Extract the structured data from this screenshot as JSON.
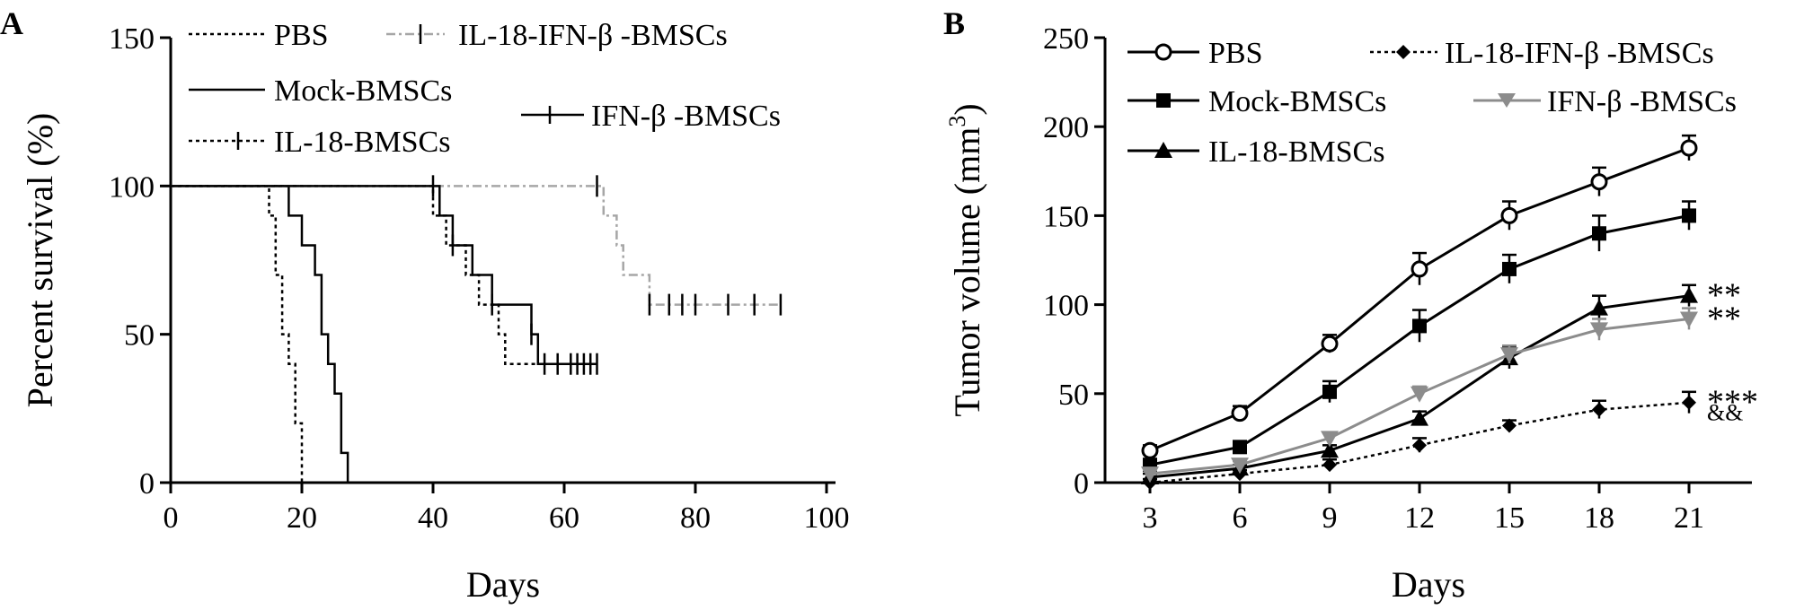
{
  "chart_data": [
    {
      "panel": "A",
      "type": "line",
      "step": true,
      "xlabel": "Days",
      "ylabel": "Percent survival (%)",
      "xlim": [
        0,
        100
      ],
      "ylim": [
        0,
        150
      ],
      "xticks": [
        0,
        20,
        40,
        60,
        80,
        100
      ],
      "yticks": [
        0,
        50,
        100,
        150
      ],
      "grid": false,
      "legend_position": "top",
      "series": [
        {
          "name": "PBS",
          "color": "#000000",
          "style": "dotted",
          "x": [
            0,
            15,
            16,
            17,
            18,
            19,
            20
          ],
          "y": [
            100,
            90,
            70,
            50,
            40,
            20,
            0
          ],
          "censored": []
        },
        {
          "name": "Mock-BMSCs",
          "color": "#000000",
          "style": "solid",
          "x": [
            0,
            17,
            18,
            20,
            22,
            23,
            24,
            25,
            26,
            27
          ],
          "y": [
            100,
            100,
            90,
            80,
            70,
            50,
            40,
            30,
            10,
            0
          ],
          "censored": []
        },
        {
          "name": "IL-18-BMSCs",
          "color": "#000000",
          "style": "dotted",
          "x": [
            0,
            39,
            40,
            42,
            45,
            47,
            50,
            51,
            53
          ],
          "y": [
            100,
            100,
            90,
            80,
            70,
            60,
            50,
            40,
            40
          ],
          "censored": [
            57,
            59,
            61,
            63,
            64
          ]
        },
        {
          "name": "IL-18-IFN-β -BMSCs",
          "color": "#a6a6a6",
          "style": "dashdot",
          "x": [
            0,
            65,
            66,
            68,
            69,
            73
          ],
          "y": [
            100,
            100,
            90,
            80,
            70,
            60
          ],
          "censored": [
            65,
            73,
            76,
            78,
            80,
            85,
            89,
            93
          ]
        },
        {
          "name": "IFN-β -BMSCs",
          "color": "#000000",
          "style": "solid",
          "x": [
            0,
            40,
            41,
            43,
            46,
            49,
            55,
            56,
            65
          ],
          "y": [
            100,
            100,
            90,
            80,
            70,
            60,
            50,
            40,
            40
          ],
          "censored": [
            40,
            43,
            49,
            55,
            62,
            65
          ]
        }
      ]
    },
    {
      "panel": "B",
      "type": "line",
      "xlabel": "Days",
      "ylabel_main": "Tumor volume (mm",
      "ylabel_sup": "3",
      "ylabel_close": ")",
      "categories": [
        3,
        6,
        9,
        12,
        15,
        18,
        21
      ],
      "ylim": [
        0,
        250
      ],
      "yticks": [
        0,
        50,
        100,
        150,
        200,
        250
      ],
      "grid": false,
      "legend_position": "top",
      "series": [
        {
          "name": "PBS",
          "color": "#000000",
          "marker": "circle-open",
          "style": "solid",
          "values": [
            18,
            39,
            78,
            120,
            150,
            169,
            188
          ],
          "errors": [
            3,
            4,
            5,
            9,
            8,
            8,
            7
          ]
        },
        {
          "name": "Mock-BMSCs",
          "color": "#000000",
          "marker": "square",
          "style": "solid",
          "values": [
            10,
            20,
            51,
            88,
            120,
            140,
            150
          ],
          "errors": [
            3,
            3,
            6,
            9,
            8,
            10,
            8
          ]
        },
        {
          "name": "IL-18-BMSCs",
          "color": "#000000",
          "marker": "triangle-up",
          "style": "solid",
          "values": [
            3,
            8,
            18,
            36,
            70,
            98,
            105
          ],
          "errors": [
            2,
            2,
            3,
            4,
            6,
            7,
            6
          ]
        },
        {
          "name": "IL-18-IFN-β -BMSCs",
          "color": "#000000",
          "marker": "diamond",
          "style": "dotted",
          "values": [
            0,
            5,
            10,
            21,
            32,
            41,
            45
          ],
          "errors": [
            2,
            2,
            3,
            4,
            3,
            5,
            6
          ]
        },
        {
          "name": "IFN-β -BMSCs",
          "color": "#8c8c8c",
          "marker": "triangle-down",
          "style": "solid",
          "values": [
            5,
            10,
            25,
            50,
            72,
            86,
            92
          ],
          "errors": [
            2,
            2,
            3,
            4,
            5,
            6,
            6
          ]
        }
      ],
      "annotations": [
        {
          "text": "**",
          "series": "IL-18-BMSCs"
        },
        {
          "text": "**",
          "series": "IFN-β -BMSCs"
        },
        {
          "text": "***",
          "series": "IL-18-IFN-β -BMSCs"
        },
        {
          "text": "&&",
          "series": "IL-18-IFN-β -BMSCs"
        }
      ]
    }
  ]
}
